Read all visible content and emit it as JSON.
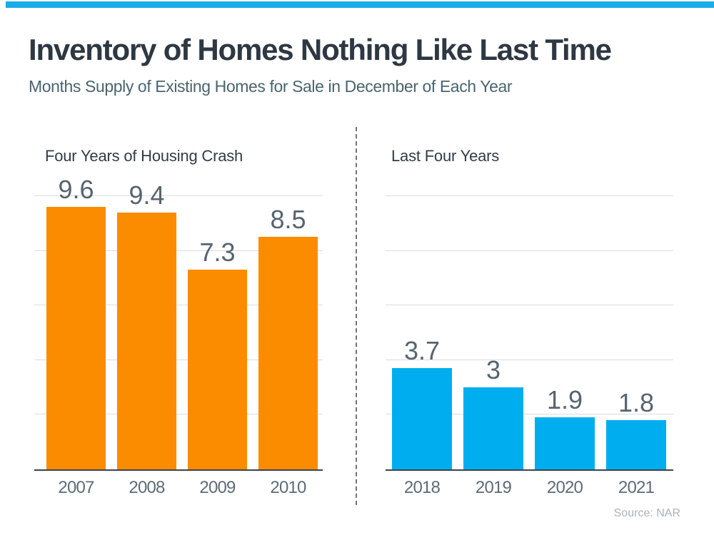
{
  "page": {
    "title": "Inventory of Homes Nothing Like Last Time",
    "subtitle": "Months Supply of Existing Homes for Sale in December of Each Year",
    "source": "Source: NAR",
    "accent_bar_color": "#18ACE8"
  },
  "chart_data": [
    {
      "type": "bar",
      "title": "Four Years of Housing Crash",
      "categories": [
        "2007",
        "2008",
        "2009",
        "2010"
      ],
      "values": [
        9.6,
        9.4,
        7.3,
        8.5
      ],
      "value_labels": [
        "9.6",
        "9.4",
        "7.3",
        "8.5"
      ],
      "bar_color": "#FB8C00",
      "ylim": [
        0,
        10
      ],
      "gridline_step": 2,
      "grid": "on",
      "legend": "none"
    },
    {
      "type": "bar",
      "title": "Last Four Years",
      "categories": [
        "2018",
        "2019",
        "2020",
        "2021"
      ],
      "values": [
        3.7,
        3,
        1.9,
        1.8
      ],
      "value_labels": [
        "3.7",
        "3",
        "1.9",
        "1.8"
      ],
      "bar_color": "#00AEEF",
      "ylim": [
        0,
        10
      ],
      "gridline_step": 2,
      "grid": "on",
      "legend": "none"
    }
  ]
}
